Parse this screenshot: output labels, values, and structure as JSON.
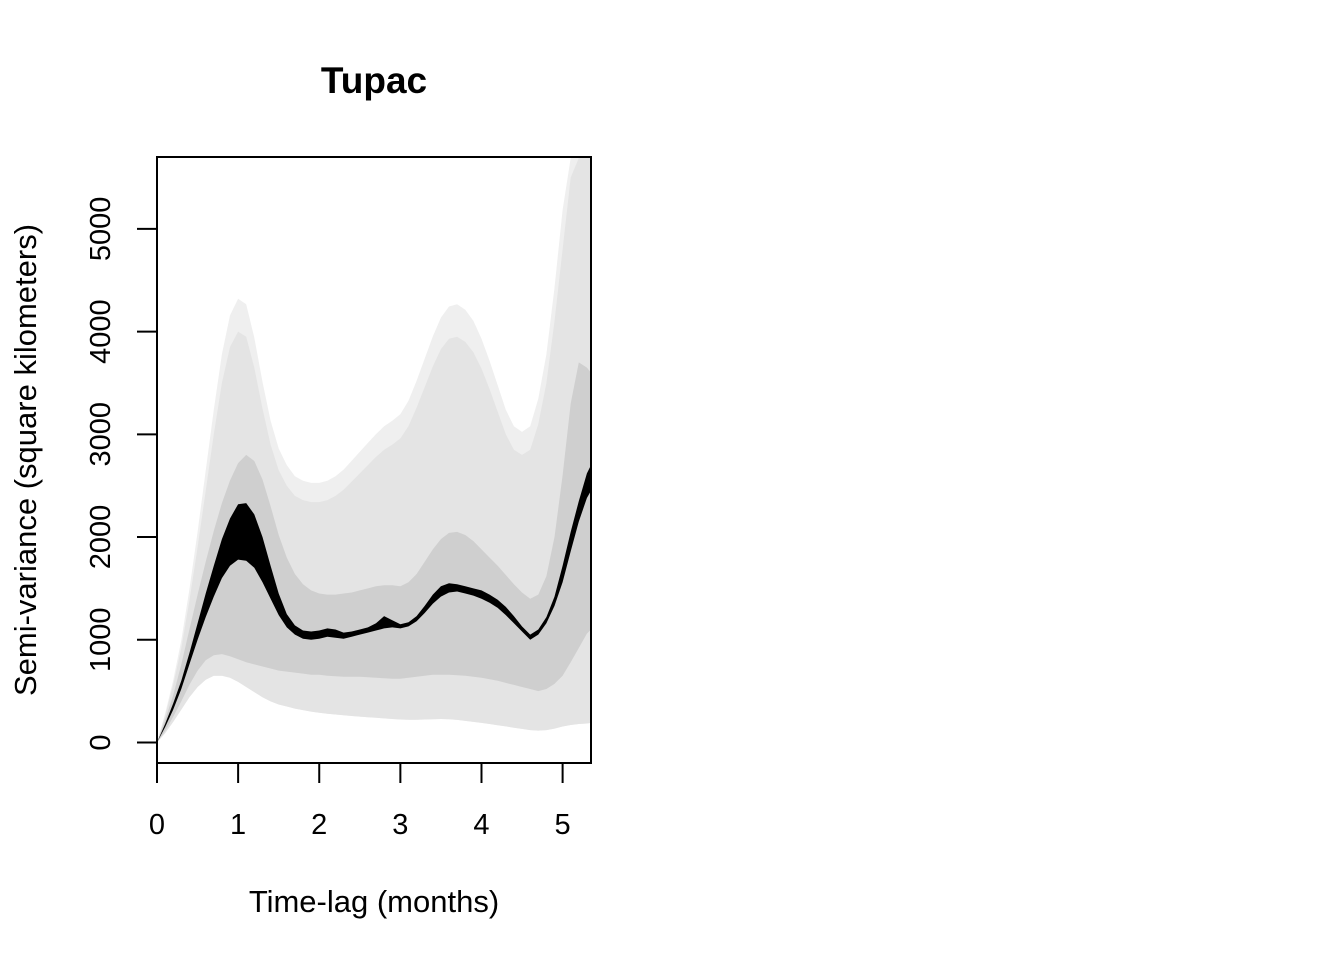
{
  "chart_data": {
    "type": "line",
    "title": "Tupac",
    "xlabel": "Time-lag (months)",
    "ylabel": "Semi-variance (square kilometers)",
    "xlim": [
      0,
      5.35
    ],
    "ylim": [
      -200,
      5700
    ],
    "x_ticks": [
      "0",
      "1",
      "2",
      "3",
      "4",
      "5"
    ],
    "y_ticks": [
      "0",
      "1000",
      "2000",
      "3000",
      "4000",
      "5000"
    ],
    "grid": false,
    "legend": "none",
    "colors": {
      "mean": "#000000",
      "ci_inner": "#cfcfcf",
      "ci_outer": "#e4e4e4",
      "ci_outer_faint": "#efefef"
    },
    "x": [
      0,
      0.1,
      0.2,
      0.3,
      0.4,
      0.5,
      0.6,
      0.7,
      0.8,
      0.9,
      1.0,
      1.1,
      1.2,
      1.3,
      1.4,
      1.5,
      1.6,
      1.7,
      1.8,
      1.9,
      2.0,
      2.1,
      2.2,
      2.3,
      2.4,
      2.5,
      2.6,
      2.7,
      2.8,
      2.9,
      3.0,
      3.1,
      3.2,
      3.3,
      3.4,
      3.5,
      3.6,
      3.7,
      3.8,
      3.9,
      4.0,
      4.1,
      4.2,
      4.3,
      4.4,
      4.5,
      4.6,
      4.7,
      4.8,
      4.9,
      5.0,
      5.1,
      5.2,
      5.3,
      5.35
    ],
    "series": [
      {
        "role": "mean_lower",
        "values": [
          0,
          150,
          320,
          520,
          760,
          1000,
          1220,
          1420,
          1600,
          1720,
          1780,
          1770,
          1700,
          1560,
          1400,
          1240,
          1120,
          1050,
          1010,
          1000,
          1010,
          1030,
          1020,
          1010,
          1030,
          1050,
          1070,
          1090,
          1110,
          1120,
          1110,
          1130,
          1180,
          1260,
          1350,
          1420,
          1460,
          1470,
          1450,
          1430,
          1400,
          1360,
          1310,
          1240,
          1160,
          1080,
          1000,
          1050,
          1160,
          1330,
          1560,
          1860,
          2150,
          2380,
          2450
        ]
      },
      {
        "role": "mean_upper",
        "values": [
          0,
          180,
          380,
          600,
          870,
          1160,
          1450,
          1720,
          1980,
          2180,
          2320,
          2330,
          2220,
          2000,
          1720,
          1450,
          1250,
          1140,
          1090,
          1080,
          1090,
          1110,
          1100,
          1070,
          1080,
          1100,
          1120,
          1160,
          1230,
          1190,
          1150,
          1170,
          1230,
          1330,
          1440,
          1520,
          1550,
          1540,
          1520,
          1500,
          1480,
          1440,
          1390,
          1320,
          1230,
          1130,
          1050,
          1100,
          1220,
          1420,
          1720,
          2050,
          2350,
          2620,
          2700
        ]
      },
      {
        "role": "ci_inner_lower",
        "values": [
          0,
          110,
          250,
          400,
          560,
          700,
          800,
          850,
          860,
          840,
          810,
          780,
          760,
          740,
          720,
          700,
          690,
          680,
          670,
          660,
          660,
          650,
          645,
          640,
          640,
          640,
          635,
          630,
          625,
          620,
          620,
          630,
          640,
          650,
          660,
          660,
          660,
          655,
          650,
          640,
          630,
          615,
          600,
          580,
          560,
          540,
          520,
          500,
          520,
          570,
          650,
          780,
          920,
          1060,
          1100
        ]
      },
      {
        "role": "ci_inner_upper",
        "values": [
          0,
          220,
          460,
          760,
          1100,
          1440,
          1760,
          2060,
          2330,
          2550,
          2720,
          2800,
          2740,
          2560,
          2300,
          2020,
          1800,
          1640,
          1540,
          1480,
          1450,
          1440,
          1440,
          1450,
          1460,
          1480,
          1500,
          1520,
          1530,
          1530,
          1520,
          1560,
          1640,
          1760,
          1880,
          1980,
          2040,
          2050,
          2020,
          1960,
          1880,
          1800,
          1720,
          1630,
          1540,
          1460,
          1400,
          1440,
          1620,
          2000,
          2600,
          3300,
          3700,
          3650,
          3600
        ]
      },
      {
        "role": "ci_outer_lower",
        "values": [
          0,
          90,
          200,
          320,
          440,
          540,
          610,
          650,
          650,
          630,
          590,
          540,
          490,
          440,
          400,
          370,
          350,
          330,
          315,
          300,
          290,
          280,
          272,
          265,
          258,
          252,
          246,
          240,
          234,
          228,
          224,
          222,
          222,
          224,
          226,
          228,
          226,
          220,
          210,
          200,
          190,
          180,
          168,
          156,
          144,
          132,
          120,
          115,
          120,
          135,
          155,
          170,
          180,
          185,
          190
        ]
      },
      {
        "role": "ci_outer_upper",
        "values": [
          0,
          260,
          560,
          920,
          1380,
          1900,
          2450,
          3000,
          3500,
          3850,
          4000,
          3950,
          3650,
          3250,
          2900,
          2650,
          2500,
          2400,
          2360,
          2340,
          2340,
          2360,
          2400,
          2460,
          2540,
          2620,
          2700,
          2780,
          2850,
          2900,
          2960,
          3080,
          3260,
          3460,
          3660,
          3830,
          3930,
          3950,
          3900,
          3800,
          3640,
          3440,
          3220,
          3000,
          2850,
          2800,
          2850,
          3100,
          3500,
          4100,
          4800,
          5500,
          6000,
          6200,
          6200
        ]
      }
    ]
  }
}
